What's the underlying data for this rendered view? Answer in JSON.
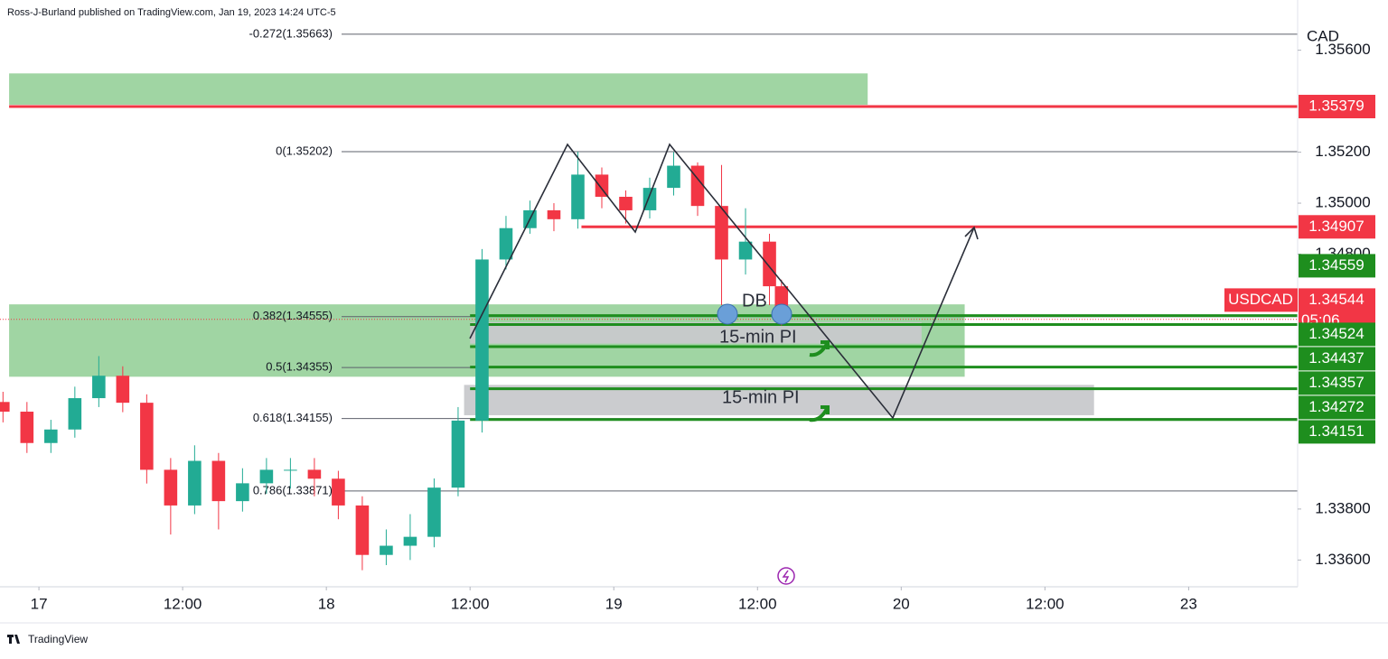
{
  "header": {
    "attribution": "Ross-J-Burland published on TradingView.com, Jan 19, 2023 14:24 UTC-5"
  },
  "footer": {
    "brand": "TradingView"
  },
  "chart_data": {
    "type": "candlestick",
    "symbol": "USDCAD",
    "currency": "CAD",
    "up_color": "#22ab94",
    "down_color": "#f23645",
    "x": [
      -3,
      -1,
      1,
      3,
      5,
      7,
      9,
      11,
      13,
      15,
      17,
      19,
      21,
      23,
      25,
      27,
      29,
      31,
      33,
      35,
      37,
      39,
      41,
      43,
      45,
      47,
      49,
      51,
      53,
      55,
      57,
      59,
      61,
      62
    ],
    "open": [
      1.3422,
      1.34182,
      1.34059,
      1.34112,
      1.34235,
      1.34323,
      1.34217,
      1.33954,
      1.33814,
      1.33989,
      1.33831,
      1.33901,
      1.33954,
      1.33954,
      1.33919,
      1.33814,
      1.3362,
      1.33656,
      1.33691,
      1.33884,
      1.34147,
      1.34779,
      1.34902,
      1.34972,
      1.34937,
      1.35112,
      1.35025,
      1.34972,
      1.3506,
      1.35147,
      1.34989,
      1.34779,
      1.34849,
      1.34674
    ],
    "high": [
      1.3426,
      1.3422,
      1.3415,
      1.3428,
      1.344,
      1.3436,
      1.3425,
      1.34,
      1.3405,
      1.3402,
      1.3396,
      1.34,
      1.34,
      1.34,
      1.3395,
      1.3385,
      1.3372,
      1.3378,
      1.3392,
      1.342,
      1.3482,
      1.3495,
      1.3501,
      1.35,
      1.35202,
      1.3514,
      1.3505,
      1.351,
      1.352,
      1.3516,
      1.3515,
      1.3498,
      1.3488,
      1.347
    ],
    "low": [
      1.3414,
      1.3402,
      1.3402,
      1.3408,
      1.342,
      1.3418,
      1.339,
      1.337,
      1.3378,
      1.3372,
      1.3379,
      1.3386,
      1.3388,
      1.3385,
      1.3376,
      1.3356,
      1.3358,
      1.336,
      1.3365,
      1.3385,
      1.341,
      1.3474,
      1.3488,
      1.3489,
      1.349,
      1.3498,
      1.3492,
      1.3494,
      1.3503,
      1.3495,
      1.346,
      1.3472,
      1.346,
      1.3452
    ],
    "close": [
      1.34182,
      1.34059,
      1.34112,
      1.34235,
      1.34323,
      1.34217,
      1.33954,
      1.33814,
      1.33989,
      1.33831,
      1.33901,
      1.33954,
      1.33954,
      1.33919,
      1.33814,
      1.3362,
      1.33656,
      1.33691,
      1.33884,
      1.34147,
      1.34779,
      1.34902,
      1.34972,
      1.34937,
      1.35112,
      1.35025,
      1.34972,
      1.3506,
      1.35147,
      1.34989,
      1.34779,
      1.34849,
      1.34674,
      1.34544
    ],
    "xlim": [
      -3.25,
      105.1
    ],
    "xticks": [
      {
        "value": 0,
        "label": "17"
      },
      {
        "value": 12,
        "label": "12:00"
      },
      {
        "value": 24,
        "label": "18"
      },
      {
        "value": 36,
        "label": "12:00"
      },
      {
        "value": 48,
        "label": "19"
      },
      {
        "value": 60,
        "label": "12:00"
      },
      {
        "value": 72,
        "label": "20"
      },
      {
        "value": 84,
        "label": "12:00"
      },
      {
        "value": 96,
        "label": "23"
      }
    ],
    "ylim": [
      1.33495,
      1.35797
    ],
    "yticks": [
      {
        "value": 1.356,
        "label": "1.35600"
      },
      {
        "value": 1.352,
        "label": "1.35200"
      },
      {
        "value": 1.35,
        "label": "1.35000"
      },
      {
        "value": 1.348,
        "label": "1.34800"
      },
      {
        "value": 1.338,
        "label": "1.33800"
      },
      {
        "value": 1.336,
        "label": "1.33600"
      }
    ],
    "fib_levels": [
      {
        "label": "-0.272(1.35663)",
        "price": 1.35663
      },
      {
        "label": "0(1.35202)",
        "price": 1.35202
      },
      {
        "label": "0.382(1.34555)",
        "price": 1.34555
      },
      {
        "label": "0.5(1.34355)",
        "price": 1.34355
      },
      {
        "label": "0.618(1.34155)",
        "price": 1.34155
      },
      {
        "label": "0.786(1.33871)",
        "price": 1.33871
      }
    ],
    "zones": [
      {
        "color": "#9bd39e",
        "x": [
          -2.49,
          69.2
        ],
        "price": [
          1.35386,
          1.35509
        ]
      },
      {
        "color": "#9bd39e",
        "x": [
          -2.49,
          77.3
        ],
        "price": [
          1.34319,
          1.34603
        ]
      },
      {
        "color": "#c8c9cc",
        "x": [
          36,
          73.7
        ],
        "price": [
          1.34449,
          1.34533
        ]
      },
      {
        "color": "#c8c9cc",
        "x": [
          35.5,
          88.1
        ],
        "price": [
          1.34168,
          1.34287
        ]
      }
    ],
    "levels": [
      {
        "price": 1.35379,
        "color": "#f23645",
        "x_start": -2.49
      },
      {
        "price": 1.34907,
        "color": "#f23645",
        "x_start": 45.3
      },
      {
        "price": 1.34559,
        "color": "#1e8e1e",
        "x_start": 36
      },
      {
        "price": 1.34524,
        "color": "#1e8e1e",
        "x_start": 36
      },
      {
        "price": 1.34437,
        "color": "#1e8e1e",
        "x_start": 36
      },
      {
        "price": 1.34357,
        "color": "#1e8e1e",
        "x_start": 36
      },
      {
        "price": 1.34272,
        "color": "#1e8e1e",
        "x_start": 36
      },
      {
        "price": 1.34151,
        "color": "#1e8e1e",
        "x_start": 36
      }
    ],
    "last_price": {
      "price": 1.34544,
      "countdown": "05:06",
      "color": "#f23645"
    },
    "annotations": [
      {
        "text": "DB"
      },
      {
        "text": "15-min PI"
      },
      {
        "text": "15-min PI"
      }
    ]
  }
}
